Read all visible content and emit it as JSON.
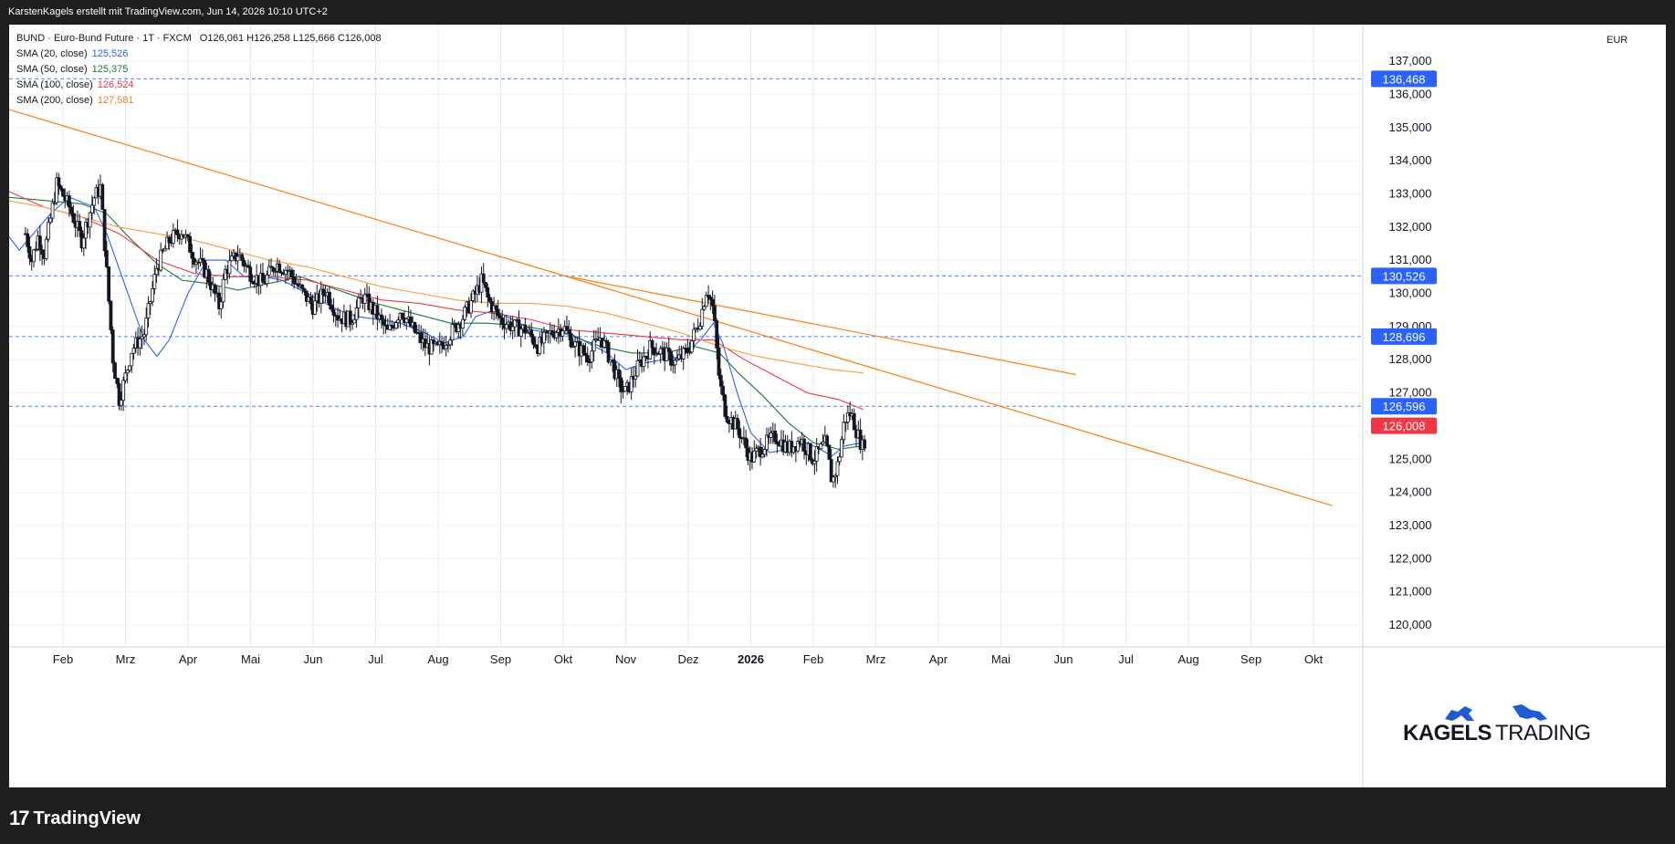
{
  "attribution": "KarstenKagels erstellt mit TradingView.com, Jun 14, 2026 10:10 UTC+2",
  "footer_brand": "TradingView",
  "watermark": {
    "bold": "KAGELS",
    "light": "TRADING"
  },
  "legend": {
    "title": "BUND · Euro-Bund Future · 1T · FXCM",
    "ohlc": "O126,061  H126,258  L125,666  C126,008",
    "indicators": [
      {
        "label": "SMA (20, close)",
        "value": "125,526",
        "color": "#2962ff"
      },
      {
        "label": "SMA (50, close)",
        "value": "125,375",
        "color": "#1b7a3b"
      },
      {
        "label": "SMA (100, close)",
        "value": "126,524",
        "color": "#f23645"
      },
      {
        "label": "SMA (200, close)",
        "value": "127,581",
        "color": "#ff7f0e"
      }
    ]
  },
  "currency": "EUR",
  "colors": {
    "up": "#ffffff",
    "down": "#131722",
    "hline": "#2962ff",
    "trend": "#ff7f0e",
    "sma20": "#2962ff",
    "sma50": "#1b7a3b",
    "sma100": "#f23645",
    "sma200": "#ff9a3c",
    "last_price": "#f23645",
    "label_blue": "#2962ff"
  },
  "chart_data": {
    "type": "candlestick",
    "symbol": "BUND",
    "timeframe": "1T",
    "ylim": [
      119.2,
      138.1
    ],
    "y_ticks": [
      "120,000",
      "121,000",
      "122,000",
      "123,000",
      "124,000",
      "125,000",
      "126,000",
      "127,000",
      "128,000",
      "129,000",
      "130,000",
      "131,000",
      "132,000",
      "133,000",
      "134,000",
      "135,000",
      "136,000",
      "137,000"
    ],
    "x_ticks": [
      {
        "label": "Feb",
        "t": 1.5
      },
      {
        "label": "Mrz",
        "t": 2.5
      },
      {
        "label": "Apr",
        "t": 3.5
      },
      {
        "label": "Mai",
        "t": 4.5
      },
      {
        "label": "Jun",
        "t": 5.5
      },
      {
        "label": "Jul",
        "t": 6.5
      },
      {
        "label": "Aug",
        "t": 7.5
      },
      {
        "label": "Sep",
        "t": 8.5
      },
      {
        "label": "Okt",
        "t": 9.5
      },
      {
        "label": "Nov",
        "t": 10.5
      },
      {
        "label": "Dez",
        "t": 11.5
      },
      {
        "label": "2026",
        "t": 12.5,
        "bold": true
      },
      {
        "label": "Feb",
        "t": 13.5
      },
      {
        "label": "Mrz",
        "t": 14.5
      },
      {
        "label": "Apr",
        "t": 15.5
      },
      {
        "label": "Mai",
        "t": 16.5
      },
      {
        "label": "Jun",
        "t": 17.5
      },
      {
        "label": "Jul",
        "t": 18.5
      },
      {
        "label": "Aug",
        "t": 19.5
      },
      {
        "label": "Sep",
        "t": 20.5
      },
      {
        "label": "Okt",
        "t": 21.5
      }
    ],
    "price_path": [
      [
        0.9,
        131.8
      ],
      [
        1.0,
        131.0
      ],
      [
        1.1,
        131.7
      ],
      [
        1.2,
        131.2
      ],
      [
        1.4,
        133.3
      ],
      [
        1.6,
        132.6
      ],
      [
        1.8,
        131.6
      ],
      [
        2.0,
        132.9
      ],
      [
        2.1,
        133.2
      ],
      [
        2.2,
        130.6
      ],
      [
        2.3,
        128.0
      ],
      [
        2.4,
        126.8
      ],
      [
        2.5,
        127.5
      ],
      [
        2.6,
        128.3
      ],
      [
        2.8,
        128.8
      ],
      [
        3.0,
        130.8
      ],
      [
        3.2,
        131.6
      ],
      [
        3.4,
        131.9
      ],
      [
        3.6,
        131.1
      ],
      [
        3.8,
        130.6
      ],
      [
        4.0,
        129.6
      ],
      [
        4.1,
        130.7
      ],
      [
        4.3,
        131.2
      ],
      [
        4.5,
        130.6
      ],
      [
        4.7,
        130.3
      ],
      [
        4.9,
        130.9
      ],
      [
        5.1,
        130.7
      ],
      [
        5.3,
        130.1
      ],
      [
        5.5,
        129.6
      ],
      [
        5.7,
        130.1
      ],
      [
        5.9,
        129.3
      ],
      [
        6.1,
        129.2
      ],
      [
        6.3,
        129.9
      ],
      [
        6.5,
        129.4
      ],
      [
        6.7,
        128.8
      ],
      [
        6.9,
        129.5
      ],
      [
        7.1,
        128.9
      ],
      [
        7.3,
        128.4
      ],
      [
        7.5,
        128.3
      ],
      [
        7.7,
        128.8
      ],
      [
        7.9,
        129.3
      ],
      [
        8.1,
        130.0
      ],
      [
        8.2,
        130.4
      ],
      [
        8.3,
        129.8
      ],
      [
        8.5,
        129.2
      ],
      [
        8.7,
        129.0
      ],
      [
        8.9,
        128.9
      ],
      [
        9.1,
        128.4
      ],
      [
        9.3,
        128.8
      ],
      [
        9.5,
        129.0
      ],
      [
        9.7,
        128.4
      ],
      [
        9.9,
        128.1
      ],
      [
        10.1,
        128.7
      ],
      [
        10.3,
        127.8
      ],
      [
        10.4,
        127.2
      ],
      [
        10.5,
        127.0
      ],
      [
        10.7,
        127.8
      ],
      [
        10.9,
        128.4
      ],
      [
        11.1,
        128.2
      ],
      [
        11.3,
        127.9
      ],
      [
        11.5,
        128.3
      ],
      [
        11.7,
        129.3
      ],
      [
        11.8,
        130.2
      ],
      [
        11.9,
        129.5
      ],
      [
        12.0,
        127.3
      ],
      [
        12.1,
        126.4
      ],
      [
        12.3,
        125.9
      ],
      [
        12.5,
        125.0
      ],
      [
        12.7,
        125.4
      ],
      [
        12.9,
        125.7
      ],
      [
        13.1,
        125.3
      ],
      [
        13.3,
        125.6
      ],
      [
        13.5,
        125.0
      ],
      [
        13.7,
        125.5
      ],
      [
        13.8,
        124.3
      ],
      [
        13.9,
        124.9
      ],
      [
        14.0,
        126.2
      ],
      [
        14.1,
        126.4
      ],
      [
        14.2,
        125.8
      ],
      [
        14.3,
        125.3
      ],
      [
        14.35,
        126.0
      ]
    ],
    "horizontal_levels": [
      {
        "price": 136.468,
        "label": "136,468"
      },
      {
        "price": 130.526,
        "label": "130,526"
      },
      {
        "price": 128.696,
        "label": "128,696"
      },
      {
        "price": 126.596,
        "label": "126,596"
      }
    ],
    "last_price": {
      "price": 126.008,
      "label": "126,008"
    },
    "trendlines": [
      {
        "from": [
          0.0,
          135.9
        ],
        "to": [
          21.8,
          123.6
        ]
      },
      {
        "from": [
          9.6,
          130.5
        ],
        "to": [
          17.7,
          127.55
        ]
      }
    ],
    "sma": {
      "sma20": [
        [
          0.0,
          134.1
        ],
        [
          0.4,
          132.3
        ],
        [
          0.8,
          131.3
        ],
        [
          1.3,
          132.4
        ],
        [
          1.6,
          132.9
        ],
        [
          2.0,
          132.6
        ],
        [
          2.2,
          131.8
        ],
        [
          2.5,
          130.2
        ],
        [
          2.8,
          128.6
        ],
        [
          3.0,
          128.1
        ],
        [
          3.2,
          128.6
        ],
        [
          3.5,
          130.0
        ],
        [
          3.8,
          131.0
        ],
        [
          4.1,
          131.0
        ],
        [
          4.4,
          130.5
        ],
        [
          4.7,
          130.5
        ],
        [
          5.0,
          130.4
        ],
        [
          5.3,
          130.1
        ],
        [
          5.6,
          129.8
        ],
        [
          5.9,
          129.5
        ],
        [
          6.2,
          129.3
        ],
        [
          6.6,
          129.2
        ],
        [
          6.9,
          129.1
        ],
        [
          7.3,
          128.8
        ],
        [
          7.6,
          128.5
        ],
        [
          7.9,
          128.7
        ],
        [
          8.1,
          129.3
        ],
        [
          8.4,
          129.5
        ],
        [
          8.7,
          129.2
        ],
        [
          9.0,
          128.9
        ],
        [
          9.3,
          128.8
        ],
        [
          9.6,
          128.8
        ],
        [
          9.9,
          128.5
        ],
        [
          10.2,
          128.2
        ],
        [
          10.5,
          127.7
        ],
        [
          10.8,
          127.9
        ],
        [
          11.1,
          128.0
        ],
        [
          11.4,
          128.1
        ],
        [
          11.7,
          128.6
        ],
        [
          11.9,
          129.1
        ],
        [
          12.05,
          128.5
        ],
        [
          12.3,
          126.9
        ],
        [
          12.5,
          125.8
        ],
        [
          12.8,
          125.2
        ],
        [
          13.1,
          125.3
        ],
        [
          13.4,
          125.5
        ],
        [
          13.6,
          125.3
        ],
        [
          13.8,
          125.1
        ],
        [
          14.0,
          125.4
        ],
        [
          14.3,
          125.5
        ]
      ],
      "sma50": [
        [
          0.0,
          133.0
        ],
        [
          0.6,
          132.9
        ],
        [
          1.2,
          132.8
        ],
        [
          1.8,
          132.7
        ],
        [
          2.2,
          132.4
        ],
        [
          2.6,
          131.6
        ],
        [
          3.0,
          130.9
        ],
        [
          3.4,
          130.4
        ],
        [
          3.8,
          130.3
        ],
        [
          4.3,
          130.1
        ],
        [
          4.8,
          130.3
        ],
        [
          5.3,
          130.5
        ],
        [
          5.9,
          130.1
        ],
        [
          6.5,
          129.7
        ],
        [
          7.1,
          129.4
        ],
        [
          7.7,
          129.1
        ],
        [
          8.3,
          129.1
        ],
        [
          8.9,
          129.0
        ],
        [
          9.5,
          128.8
        ],
        [
          10.1,
          128.4
        ],
        [
          10.6,
          128.2
        ],
        [
          11.1,
          128.2
        ],
        [
          11.6,
          128.4
        ],
        [
          12.0,
          128.2
        ],
        [
          12.3,
          127.6
        ],
        [
          12.7,
          126.9
        ],
        [
          13.1,
          126.1
        ],
        [
          13.5,
          125.5
        ],
        [
          13.9,
          125.3
        ],
        [
          14.3,
          125.4
        ]
      ],
      "sma100": [
        [
          0.0,
          133.9
        ],
        [
          0.6,
          133.1
        ],
        [
          1.2,
          132.6
        ],
        [
          1.8,
          132.3
        ],
        [
          2.4,
          131.8
        ],
        [
          3.0,
          131.0
        ],
        [
          3.6,
          130.6
        ],
        [
          4.2,
          130.5
        ],
        [
          4.8,
          130.5
        ],
        [
          5.4,
          130.4
        ],
        [
          6.0,
          130.1
        ],
        [
          6.6,
          129.8
        ],
        [
          7.2,
          129.7
        ],
        [
          7.8,
          129.5
        ],
        [
          8.4,
          129.4
        ],
        [
          9.0,
          129.2
        ],
        [
          9.6,
          128.9
        ],
        [
          10.2,
          128.8
        ],
        [
          10.8,
          128.7
        ],
        [
          11.4,
          128.6
        ],
        [
          11.9,
          128.6
        ],
        [
          12.4,
          128.0
        ],
        [
          12.9,
          127.5
        ],
        [
          13.4,
          127.0
        ],
        [
          13.9,
          126.8
        ],
        [
          14.3,
          126.5
        ]
      ],
      "sma200": [
        [
          0.0,
          133.0
        ],
        [
          0.6,
          132.8
        ],
        [
          1.2,
          132.6
        ],
        [
          1.8,
          132.3
        ],
        [
          2.4,
          132.0
        ],
        [
          3.0,
          131.8
        ],
        [
          3.6,
          131.6
        ],
        [
          4.2,
          131.3
        ],
        [
          4.8,
          131.0
        ],
        [
          5.4,
          130.8
        ],
        [
          6.0,
          130.5
        ],
        [
          6.6,
          130.2
        ],
        [
          7.2,
          130.0
        ],
        [
          7.8,
          129.8
        ],
        [
          8.4,
          129.7
        ],
        [
          9.0,
          129.7
        ],
        [
          9.6,
          129.6
        ],
        [
          10.2,
          129.4
        ],
        [
          10.8,
          129.1
        ],
        [
          11.4,
          128.8
        ],
        [
          12.0,
          128.4
        ],
        [
          12.6,
          128.1
        ],
        [
          13.2,
          127.9
        ],
        [
          13.8,
          127.7
        ],
        [
          14.3,
          127.6
        ]
      ]
    }
  }
}
